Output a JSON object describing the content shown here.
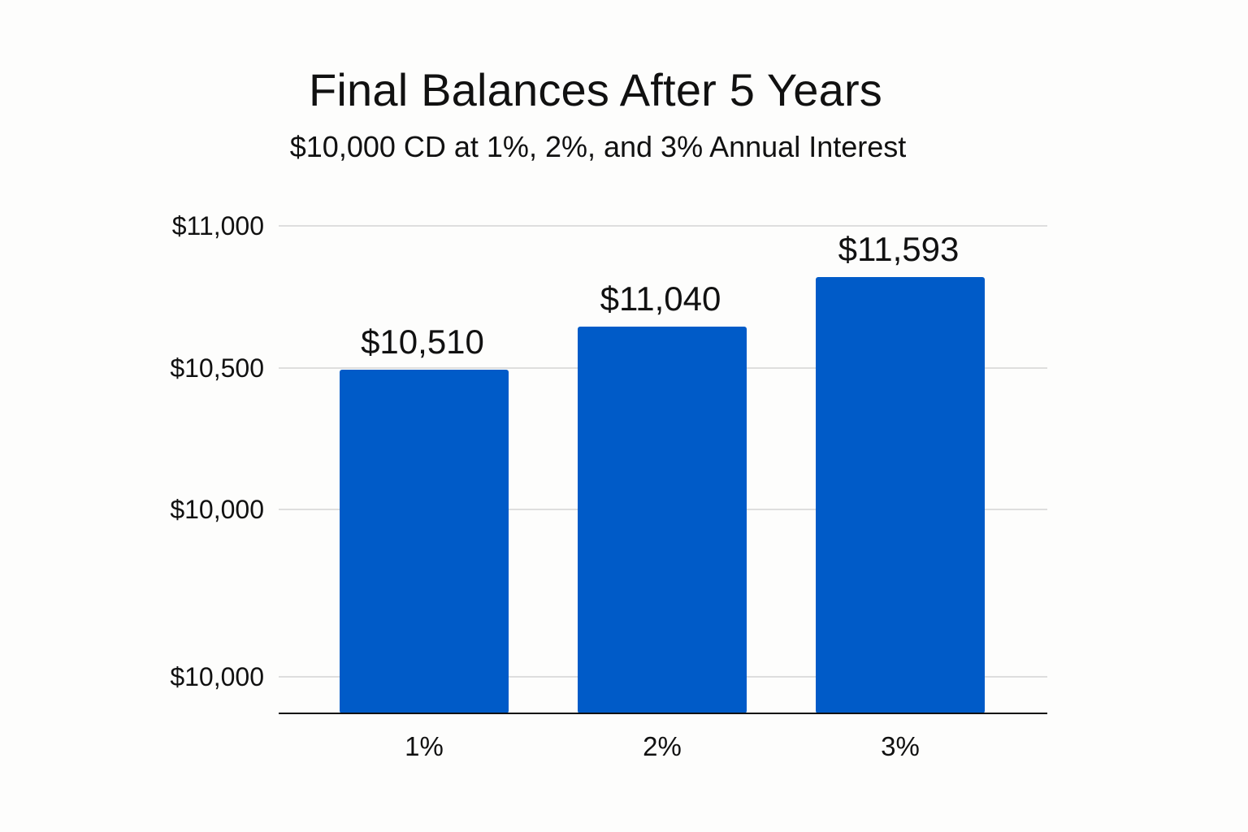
{
  "chart_data": {
    "type": "bar",
    "title": "Final Balances After 5 Years",
    "subtitle": "$10,000 CD at 1%, 2%, and 3% Annual Interest",
    "xlabel": "",
    "ylabel": "",
    "categories": [
      "1%",
      "2%",
      "3%"
    ],
    "values": [
      10510,
      11040,
      11593
    ],
    "data_labels": [
      "$10,510",
      "$11,040",
      "$11,593"
    ],
    "y_ticks": [
      {
        "label": "$11,000"
      },
      {
        "label": "$10,500"
      },
      {
        "label": "$10,000"
      },
      {
        "label": "$10,000"
      }
    ],
    "grid": true,
    "legend": "none",
    "bar_color": "#005bc8",
    "grid_color": "#cccccc",
    "axis_color": "#111111"
  }
}
